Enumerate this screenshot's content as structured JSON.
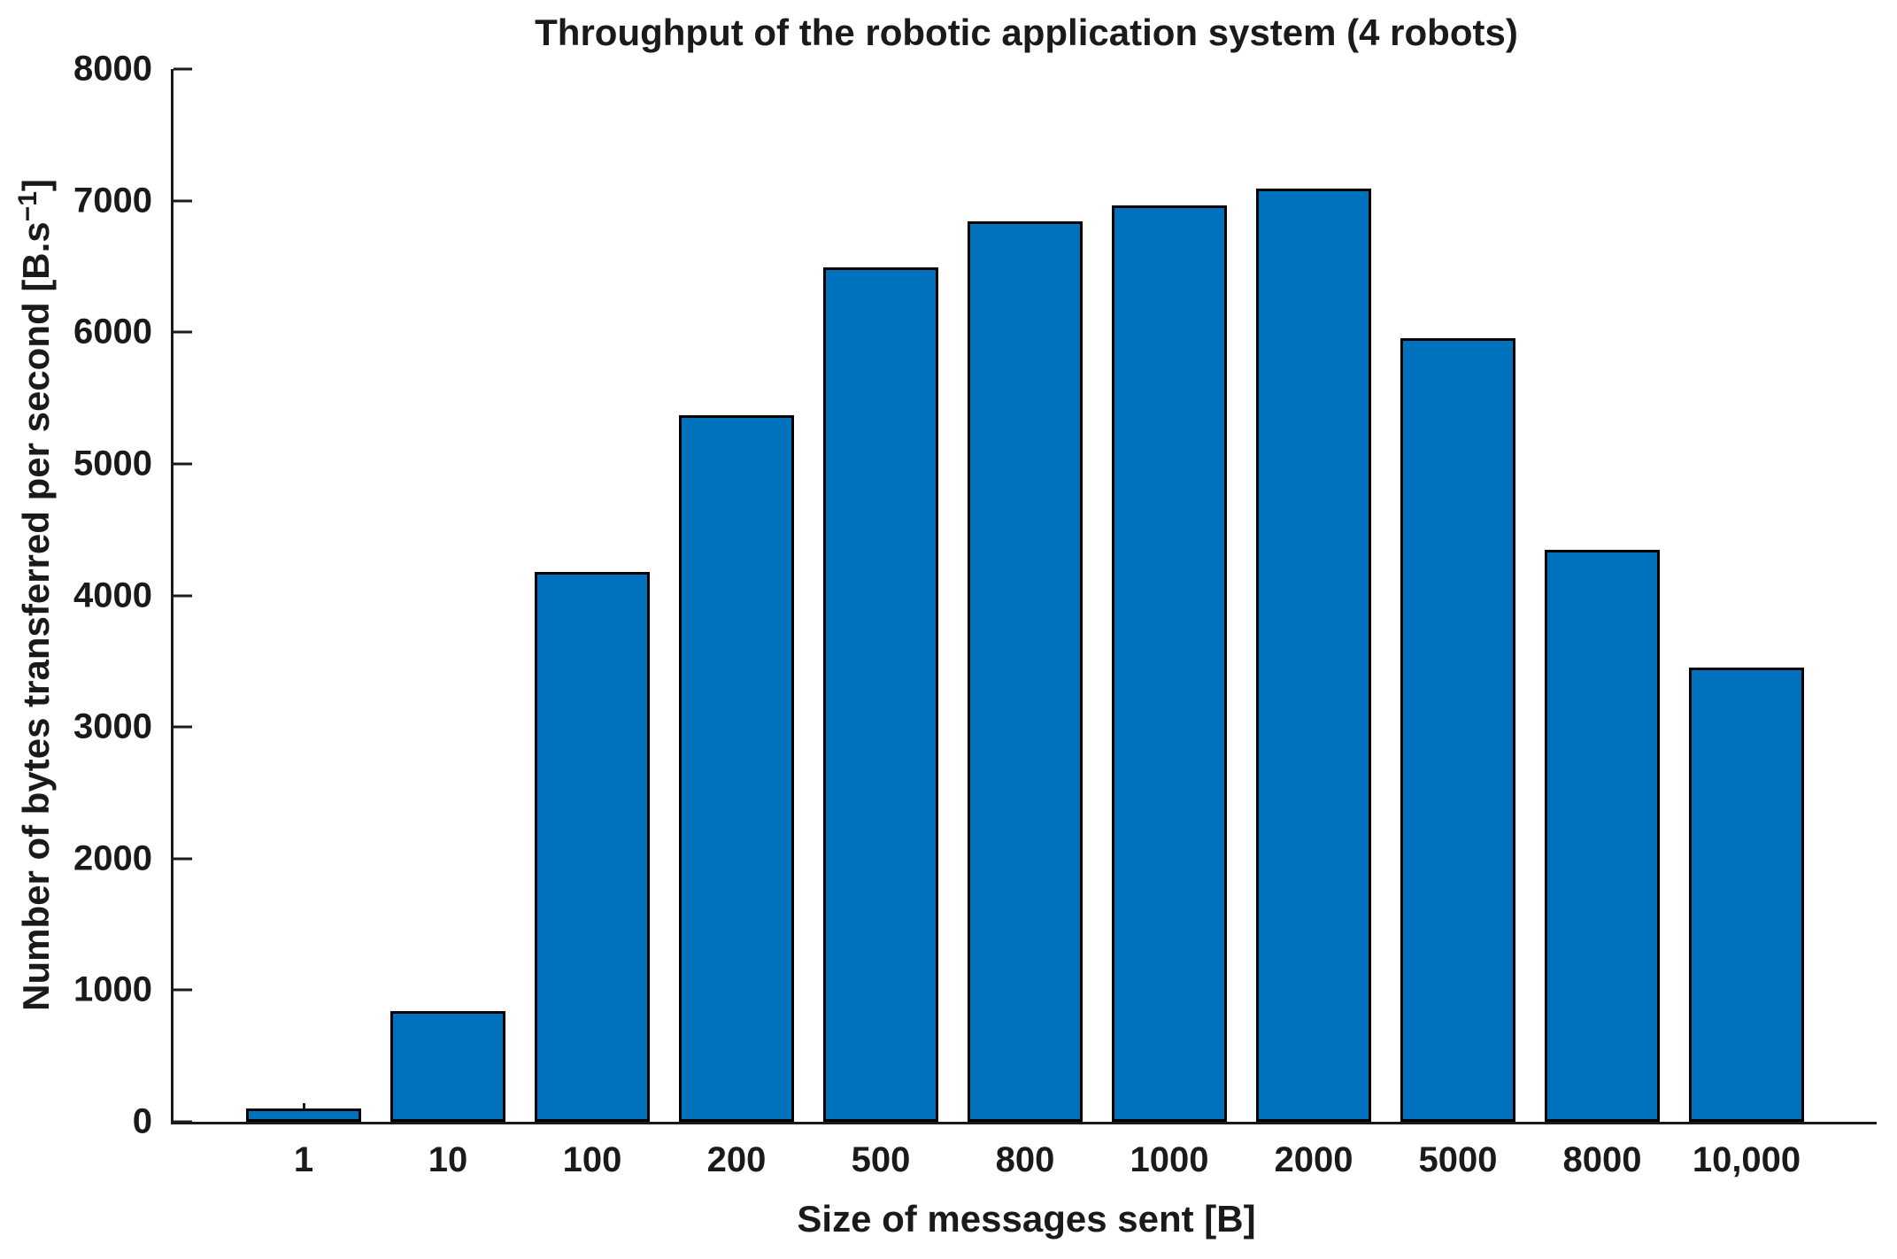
{
  "chart_data": {
    "type": "bar",
    "title": "Throughput of the robotic application system (4 robots)",
    "xlabel": "Size of messages sent [B]",
    "ylabel_main": "Number of bytes transferred per second [B.s",
    "ylabel_sup": "−1",
    "ylabel_end": "]",
    "categories": [
      "1",
      "10",
      "100",
      "200",
      "500",
      "800",
      "1000",
      "2000",
      "5000",
      "8000",
      "10,000"
    ],
    "values": [
      100,
      840,
      4180,
      5370,
      6495,
      6845,
      6965,
      7090,
      5955,
      4345,
      3455
    ],
    "ylim": [
      0,
      8000
    ],
    "yticks": [
      0,
      1000,
      2000,
      3000,
      4000,
      5000,
      6000,
      7000,
      8000
    ],
    "grid": false,
    "legend": null,
    "bar_width_fraction": 0.8,
    "colors": {
      "bar_fill": "#0072BD",
      "bar_edge": "#000000",
      "axis": "#1a1a1a",
      "text": "#1a1a1a"
    }
  }
}
